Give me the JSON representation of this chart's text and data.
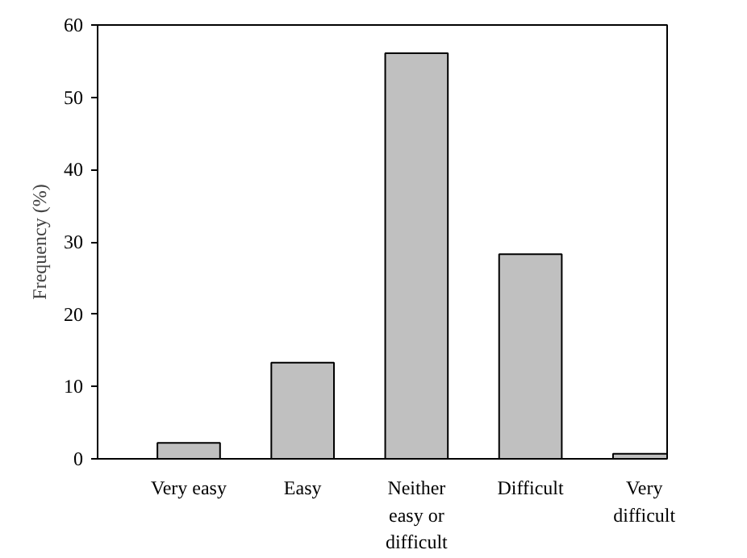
{
  "chart_data": {
    "type": "bar",
    "ylabel": "Frequency (%)",
    "categories": [
      "Very easy",
      "Easy",
      "Neither easy or difficult",
      "Difficult",
      "Very difficult"
    ],
    "values": [
      2.2,
      13.3,
      56.1,
      28.3,
      0.7
    ],
    "color": "#c0c0c0",
    "ylim": [
      0,
      60
    ],
    "yticks": [
      0,
      10,
      20,
      30,
      40,
      50,
      60
    ],
    "grid": false
  }
}
